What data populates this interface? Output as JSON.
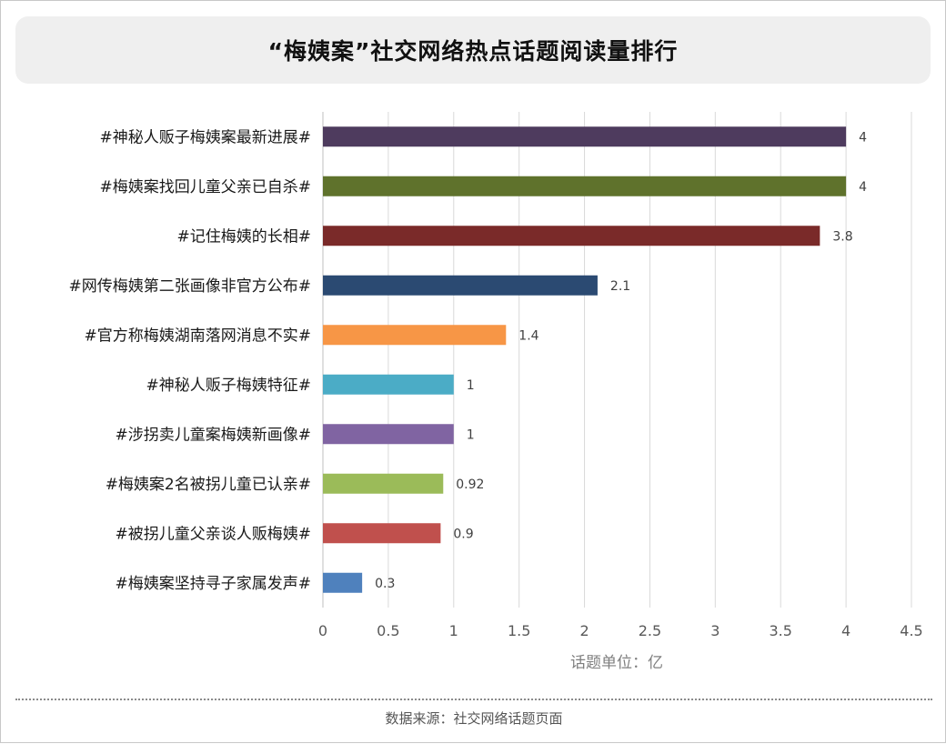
{
  "title": "“梅姨案”社交网络热点话题阅读量排行",
  "footer": "数据来源：社交网络话题页面",
  "chart_data": {
    "type": "bar",
    "orientation": "horizontal",
    "categories": [
      "#神秘人贩子梅姨案最新进展#",
      "#梅姨案找回儿童父亲已自杀#",
      "#记住梅姨的长相#",
      "#网传梅姨第二张画像非官方公布#",
      "#官方称梅姨湖南落网消息不实#",
      "#神秘人贩子梅姨特征#",
      "#涉拐卖儿童案梅姨新画像#",
      "#梅姨案2名被拐儿童已认亲#",
      "#被拐儿童父亲谈人贩梅姨#",
      "#梅姨案坚持寻子家属发声#"
    ],
    "values": [
      4,
      4,
      3.8,
      2.1,
      1.4,
      1,
      1,
      0.92,
      0.9,
      0.3
    ],
    "value_labels": [
      "4",
      "4",
      "3.8",
      "2.1",
      "1.4",
      "1",
      "1",
      "0.92",
      "0.9",
      "0.3"
    ],
    "colors": [
      "#4e3b5e",
      "#5f722c",
      "#7a2a29",
      "#2b4a72",
      "#f79646",
      "#4bacc6",
      "#8064a2",
      "#9bbb59",
      "#c0504d",
      "#4f81bd"
    ],
    "xlim": [
      0,
      4.5
    ],
    "x_ticks": [
      "0",
      "0.5",
      "1",
      "1.5",
      "2",
      "2.5",
      "3",
      "3.5",
      "4",
      "4.5"
    ],
    "xlabel": "话题单位：亿",
    "grid": true
  }
}
